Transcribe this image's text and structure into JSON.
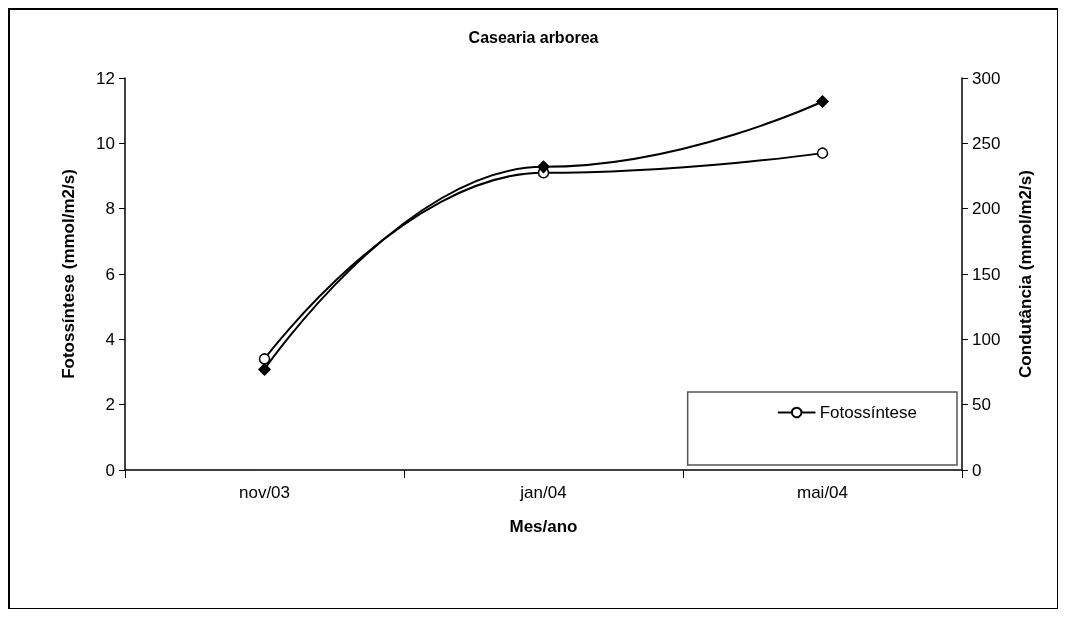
{
  "chart_data": {
    "type": "line",
    "title": "Casearia arborea",
    "xlabel": "Mes/ano",
    "ylabel": "Fotossíntese (mmol/m2/s)",
    "y2label": "Condutância (mmol/m2/s)",
    "categories": [
      "nov/03",
      "jan/04",
      "mai/04"
    ],
    "series": [
      {
        "name": "Fotossíntese",
        "color": "#000000",
        "marker": "circle",
        "values": [
          3.4,
          9.1,
          9.7
        ]
      },
      {
        "color": "#000000",
        "marker": "diamond",
        "axis": "y2",
        "values": [
          77,
          232,
          282
        ]
      }
    ],
    "ylim": [
      0,
      12
    ],
    "yticks": [
      0,
      2,
      4,
      6,
      8,
      10,
      12
    ],
    "y2lim": [
      0,
      300
    ],
    "y2ticks": [
      0,
      50,
      100,
      150,
      200,
      250,
      300
    ],
    "grid": false,
    "legend": "bottom right"
  }
}
